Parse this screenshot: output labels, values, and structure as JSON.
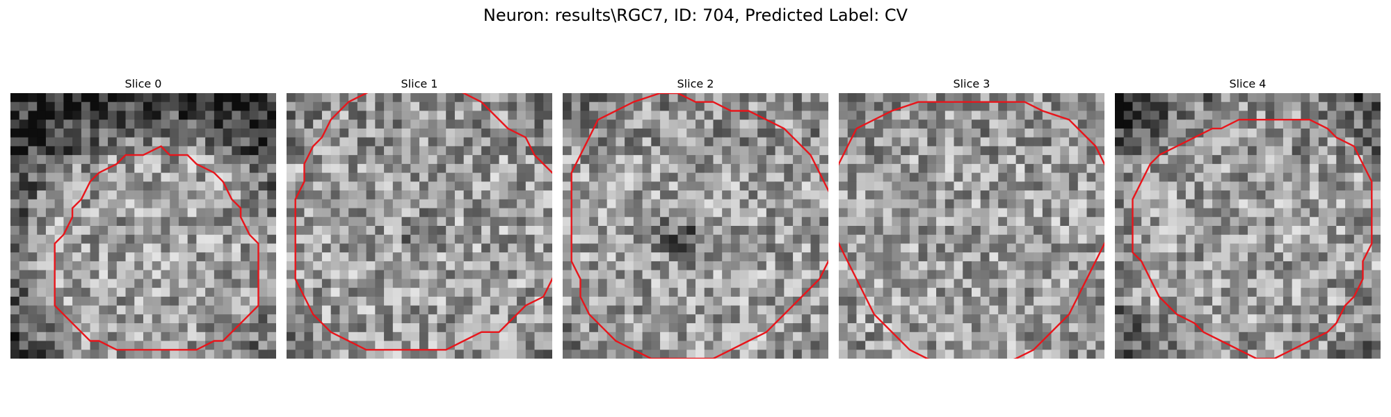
{
  "figure": {
    "title": "Neuron: results\\RGC7, ID: 704, Predicted Label: CV"
  },
  "panels": [
    {
      "title": "Slice 0",
      "seed": 11,
      "contour_color": "#e8151b"
    },
    {
      "title": "Slice 1",
      "seed": 23,
      "contour_color": "#e8151b"
    },
    {
      "title": "Slice 2",
      "seed": 37,
      "contour_color": "#e8151b"
    },
    {
      "title": "Slice 3",
      "seed": 53,
      "contour_color": "#e8151b"
    },
    {
      "title": "Slice 4",
      "seed": 71,
      "contour_color": "#e8151b"
    }
  ],
  "image": {
    "colormap": "grayscale",
    "grid_size": 30
  }
}
